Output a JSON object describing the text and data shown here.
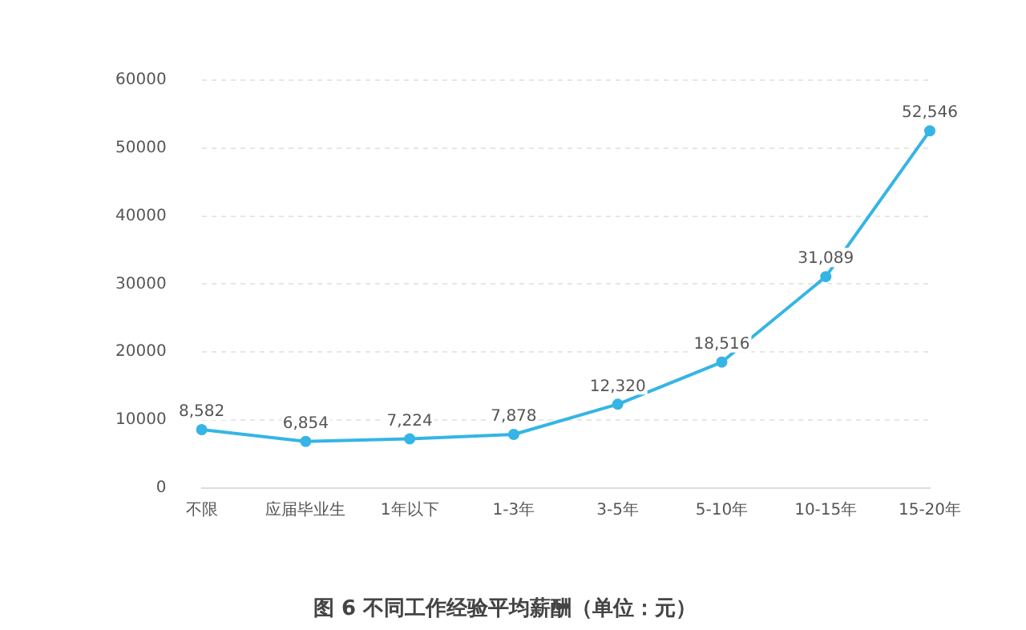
{
  "chart_data": {
    "type": "line",
    "title": "图 6 不同工作经验平均薪酬（单位：元）",
    "categories": [
      "不限",
      "应届毕业生",
      "1年以下",
      "1-3年",
      "3-5年",
      "5-10年",
      "10-15年",
      "15-20年"
    ],
    "series": [
      {
        "color": "#35b5e5",
        "values": [
          8582,
          6854,
          7224,
          7878,
          12320,
          18516,
          31089,
          52546
        ],
        "value_labels": [
          "8,582",
          "6,854",
          "7,224",
          "7,878",
          "12,320",
          "18,516",
          "31,089",
          "52,546"
        ]
      }
    ],
    "ylim": [
      0,
      60000
    ],
    "yticks": [
      0,
      10000,
      20000,
      30000,
      40000,
      50000,
      60000
    ],
    "grid": "y",
    "legend": false,
    "marker": "circle",
    "line_style": "solid"
  }
}
